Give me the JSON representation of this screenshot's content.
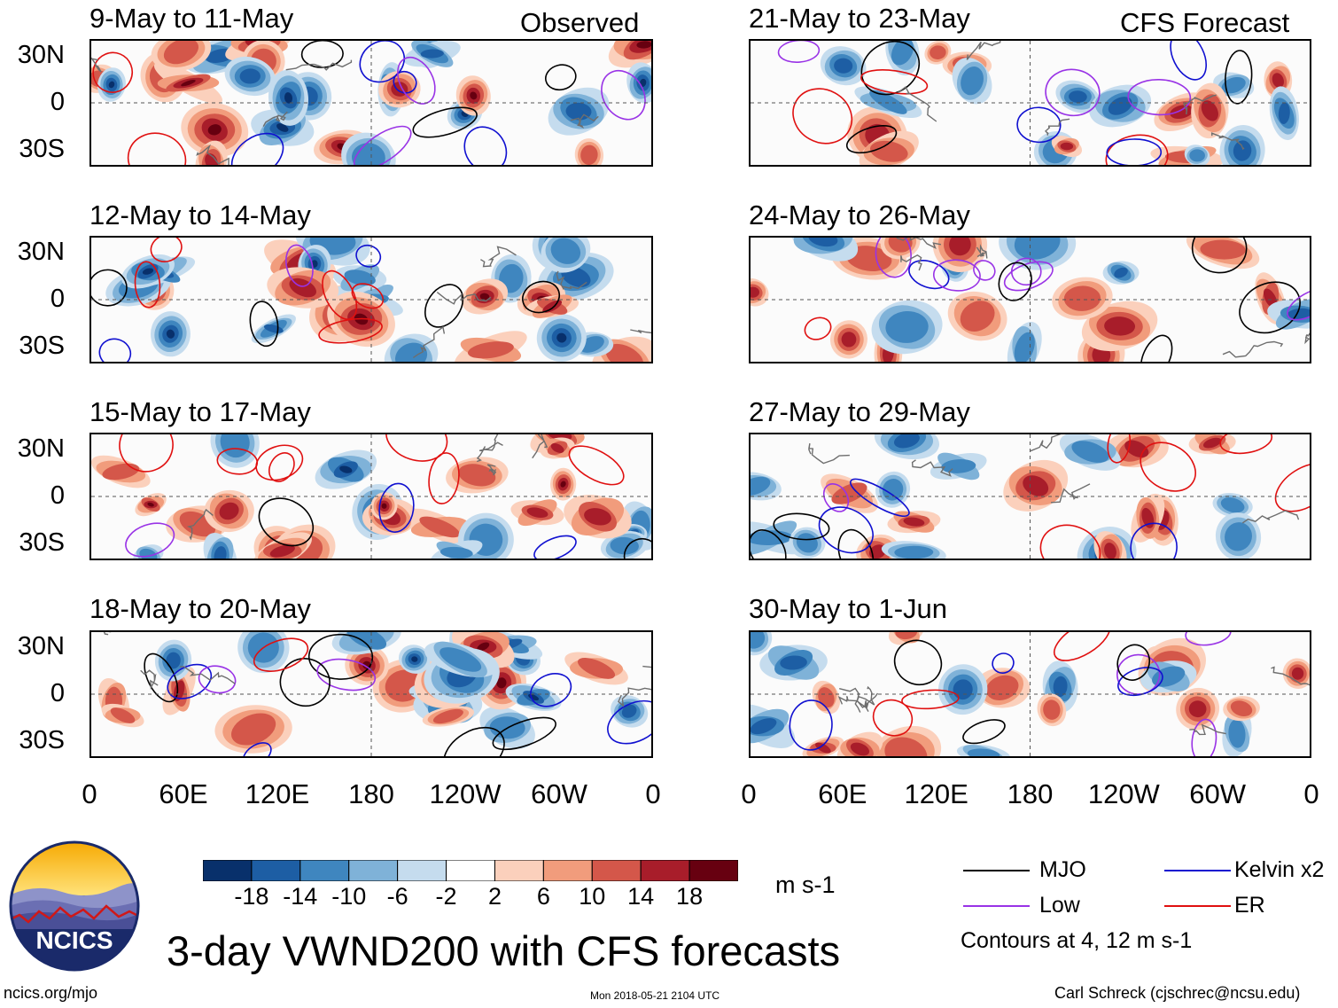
{
  "panels": {
    "observed_label": "Observed",
    "forecast_label": "CFS Forecast",
    "left": [
      {
        "title": "9-May to 11-May"
      },
      {
        "title": "12-May to 14-May"
      },
      {
        "title": "15-May to 17-May"
      },
      {
        "title": "18-May to 20-May"
      }
    ],
    "right": [
      {
        "title": "21-May to 23-May"
      },
      {
        "title": "24-May to 26-May"
      },
      {
        "title": "27-May to 29-May"
      },
      {
        "title": "30-May to 1-Jun"
      }
    ]
  },
  "axes": {
    "lat_labels": [
      "30N",
      "0",
      "30S"
    ],
    "lon_labels": [
      "0",
      "60E",
      "120E",
      "180",
      "120W",
      "60W",
      "0"
    ]
  },
  "colorbar": {
    "ticks": [
      "-18",
      "-14",
      "-10",
      "-6",
      "-2",
      "2",
      "6",
      "10",
      "14",
      "18"
    ],
    "colors": [
      "#08306b",
      "#1d5ea4",
      "#3f86bf",
      "#7fb2d8",
      "#c5dcee",
      "#ffffff",
      "#fbd0bc",
      "#f19c7c",
      "#d4574a",
      "#a81d2a",
      "#670010"
    ],
    "units": "m s-1"
  },
  "legend": {
    "items": [
      {
        "label": "MJO",
        "color": "#000000"
      },
      {
        "label": "Kelvin x2",
        "color": "#1010d0"
      },
      {
        "label": "Low",
        "color": "#9933e6"
      },
      {
        "label": "ER",
        "color": "#e01010"
      }
    ],
    "note": "Contours at 4, 12 m s-1"
  },
  "title": "3-day VWND200 with CFS forecasts",
  "logo_text": "NCICS",
  "footer": {
    "url": "ncics.org/mjo",
    "timestamp": "Mon 2018-05-21 2104 UTC",
    "author": "Carl Schreck (cjschrec@ncsu.edu)"
  }
}
